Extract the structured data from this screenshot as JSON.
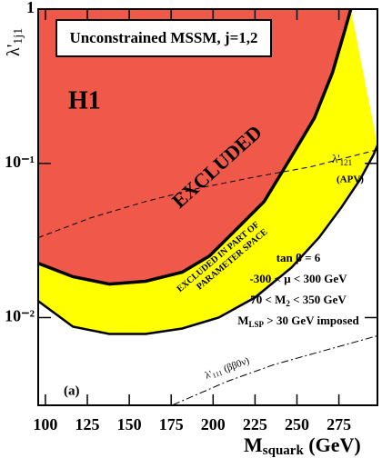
{
  "chart_data": {
    "type": "line",
    "title": "Unconstrained MSSM, j=1,2",
    "x_label": {
      "main": "M",
      "sub": "squark",
      "unit": " (GeV)"
    },
    "y_label": {
      "main": "λ'",
      "sub": "1j1"
    },
    "xlim": [
      95.7,
      298
    ],
    "ylim": [
      0.0027,
      1
    ],
    "log_y": true,
    "xticks": [
      100,
      125,
      150,
      175,
      200,
      225,
      250,
      275
    ],
    "yticks": [
      {
        "value": 0.01,
        "label": "10⁻²"
      },
      {
        "value": 0.1,
        "label": "10⁻¹"
      },
      1
    ],
    "series": [
      {
        "color": "#f0584a",
        "fill": "left",
        "line_style": "solid",
        "x": [
          95.7,
          116.4,
          138.1,
          159.8,
          181.6,
          197.9,
          214.2,
          230.5,
          246.8,
          260.4,
          271.2,
          278.3,
          282.1
        ],
        "values": [
          0.0225,
          0.0184,
          0.0165,
          0.0172,
          0.0197,
          0.0251,
          0.0377,
          0.0566,
          0.111,
          0.197,
          0.388,
          0.713,
          1
        ]
      },
      {
        "color": "#ffff00",
        "fill": "between",
        "line_style": "solid",
        "x": [
          95.7,
          116.4,
          138.1,
          159.8,
          181.6,
          203.3,
          225.0,
          246.8,
          263.1,
          276.7,
          287.6,
          295.8,
          298
        ],
        "values": [
          0.0128,
          0.00873,
          0.00783,
          0.00783,
          0.0085,
          0.01,
          0.0135,
          0.0211,
          0.033,
          0.0522,
          0.0784,
          0.1145,
          0.131
        ]
      },
      {
        "color": "#000000",
        "line_style": "dashed",
        "x": [
          95.7,
          127.2,
          159.8,
          192.4,
          225.0,
          257.6,
          298
        ],
        "values": [
          0.033,
          0.0444,
          0.0566,
          0.0694,
          0.0816,
          0.0947,
          0.1225
        ]
      },
      {
        "color": "#000000",
        "line_style": "dashdot",
        "x": [
          176.1,
          208.7,
          235.9,
          263.1,
          298
        ],
        "values": [
          0.00272,
          0.00387,
          0.00494,
          0.00598,
          0.00762
        ]
      }
    ],
    "annotations": {
      "experiment": "H1",
      "excluded": "EXCLUDED",
      "partial": [
        "EXCLUDED IN PART OF",
        "PARAMETER SPACE"
      ],
      "apv": {
        "symbol": "λ'",
        "sub": "121",
        "note": "(APV)"
      },
      "bb0v": {
        "symbol": "λ'",
        "sub": "111",
        "note": "(ββ0ν)"
      },
      "panel": "(a)",
      "parameters": [
        [
          "tan β = 6"
        ],
        [
          "-300 < μ < 300 GeV"
        ],
        [
          "70 < M",
          "2",
          " < 350 GeV"
        ],
        [
          "M",
          "LSP",
          " > 30 GeV imposed"
        ]
      ]
    }
  }
}
